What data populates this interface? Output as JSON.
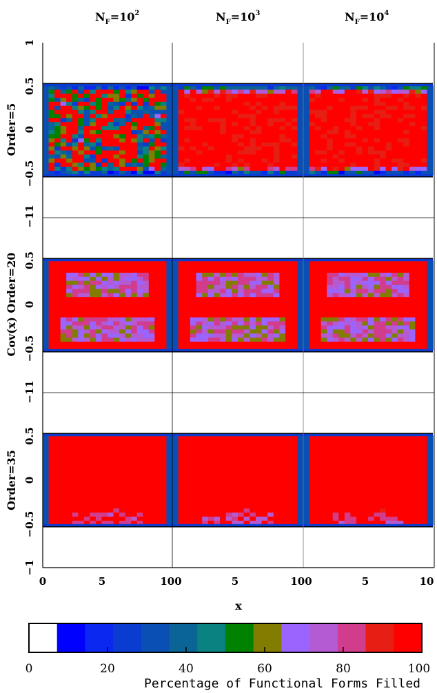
{
  "chart_data": {
    "type": "heatmap",
    "column_headers": [
      {
        "base": "N",
        "sub": "F",
        "eq": "=10",
        "exp": "2"
      },
      {
        "base": "N",
        "sub": "F",
        "eq": "=10",
        "exp": "3"
      },
      {
        "base": "N",
        "sub": "F",
        "eq": "=10",
        "exp": "4"
      }
    ],
    "row_labels": [
      "Order=5",
      "Cov(x) Order=20",
      "Order=35"
    ],
    "x_axis": {
      "label": "x",
      "range": [
        0,
        10
      ],
      "tick_labels": [
        "0",
        "5",
        "100",
        "5",
        "100",
        "5",
        "10"
      ]
    },
    "y_axis": {
      "range": [
        -1,
        1
      ],
      "tick_labels": [
        "1",
        "0.5",
        "0",
        "−0.5",
        "−11",
        "0.5",
        "0",
        "−0.5",
        "−11",
        "0.5",
        "0",
        "−0.5",
        "−1"
      ]
    },
    "colorbar": {
      "title": "Percentage of Functional Forms Filled",
      "range": [
        0,
        100
      ],
      "tick_labels": [
        "0",
        "20",
        "40",
        "60",
        "80",
        "100"
      ],
      "colors": [
        "#ffffff",
        "#0000ff",
        "#0a28f0",
        "#0a3cd2",
        "#0a50b4",
        "#0a6496",
        "#0a8282",
        "#008200",
        "#827d00",
        "#9b64ff",
        "#b45ad2",
        "#d23c8c",
        "#e61e14",
        "#ff0000"
      ]
    },
    "panels": [
      {
        "row": 0,
        "col": 0,
        "predominant_range": "30-100",
        "mean_fill_pct": 72
      },
      {
        "row": 0,
        "col": 1,
        "predominant_range": "90-100",
        "mean_fill_pct": 95
      },
      {
        "row": 0,
        "col": 2,
        "predominant_range": "95-100",
        "mean_fill_pct": 98
      },
      {
        "row": 1,
        "col": 0,
        "predominant_range": "60-100",
        "mean_fill_pct": 88
      },
      {
        "row": 1,
        "col": 1,
        "predominant_range": "60-100",
        "mean_fill_pct": 89
      },
      {
        "row": 1,
        "col": 2,
        "predominant_range": "60-100",
        "mean_fill_pct": 90
      },
      {
        "row": 2,
        "col": 0,
        "predominant_range": "95-100",
        "mean_fill_pct": 99
      },
      {
        "row": 2,
        "col": 1,
        "predominant_range": "95-100",
        "mean_fill_pct": 99
      },
      {
        "row": 2,
        "col": 2,
        "predominant_range": "95-100",
        "mean_fill_pct": 99
      }
    ],
    "grid": false,
    "legend": "bottom"
  }
}
